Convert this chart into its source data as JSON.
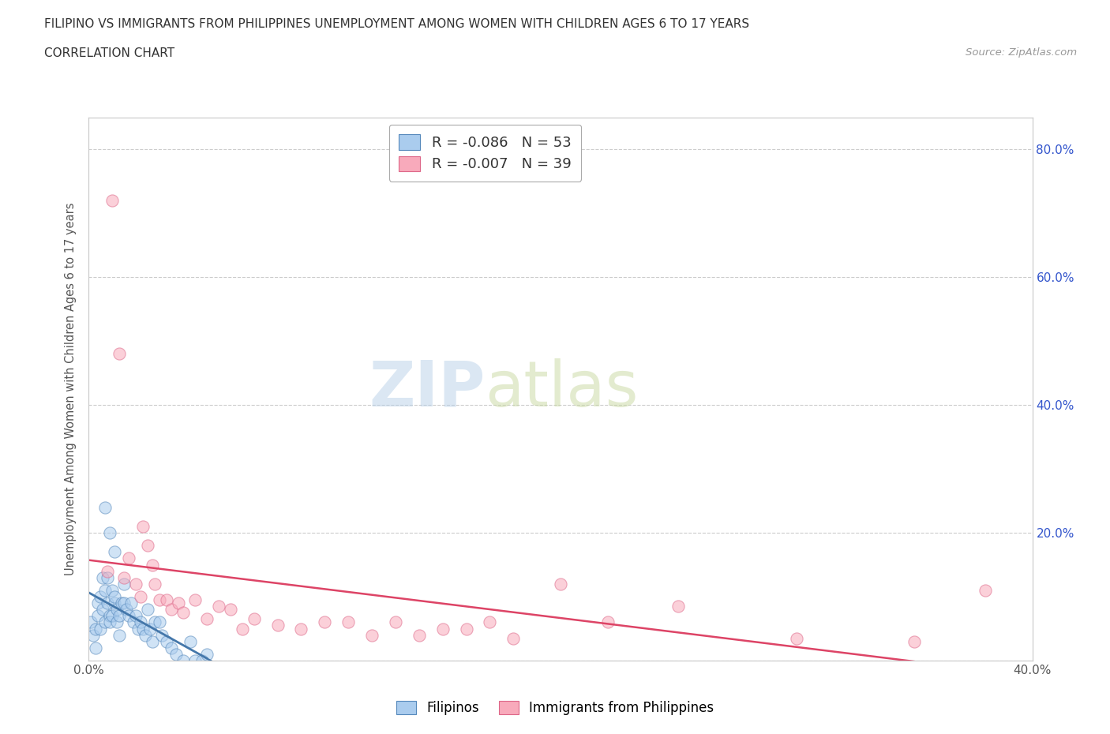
{
  "title_line1": "FILIPINO VS IMMIGRANTS FROM PHILIPPINES UNEMPLOYMENT AMONG WOMEN WITH CHILDREN AGES 6 TO 17 YEARS",
  "title_line2": "CORRELATION CHART",
  "source_text": "Source: ZipAtlas.com",
  "watermark_zip": "ZIP",
  "watermark_atlas": "atlas",
  "ylabel": "Unemployment Among Women with Children Ages 6 to 17 years",
  "xlim": [
    0.0,
    0.4
  ],
  "ylim": [
    0.0,
    0.85
  ],
  "xticks": [
    0.0,
    0.05,
    0.1,
    0.15,
    0.2,
    0.25,
    0.3,
    0.35,
    0.4
  ],
  "yticks": [
    0.0,
    0.2,
    0.4,
    0.6,
    0.8
  ],
  "ytick_labels_right": [
    "",
    "20.0%",
    "40.0%",
    "60.0%",
    "80.0%"
  ],
  "grid_color": "#cccccc",
  "background_color": "#ffffff",
  "filipinos_color": "#aaccee",
  "filipinos_edge_color": "#5588bb",
  "immigrants_color": "#f8aabb",
  "immigrants_edge_color": "#dd6688",
  "filipinos_R": -0.086,
  "filipinos_N": 53,
  "immigrants_R": -0.007,
  "immigrants_N": 39,
  "filipinos_trend_color": "#4477aa",
  "immigrants_trend_color": "#dd4466",
  "legend_R_color": "#3355cc",
  "filipinos_x": [
    0.001,
    0.002,
    0.003,
    0.003,
    0.004,
    0.004,
    0.005,
    0.005,
    0.006,
    0.006,
    0.007,
    0.007,
    0.008,
    0.008,
    0.009,
    0.009,
    0.01,
    0.01,
    0.011,
    0.011,
    0.012,
    0.012,
    0.013,
    0.013,
    0.014,
    0.015,
    0.015,
    0.016,
    0.017,
    0.018,
    0.019,
    0.02,
    0.021,
    0.022,
    0.023,
    0.024,
    0.025,
    0.026,
    0.027,
    0.028,
    0.03,
    0.031,
    0.033,
    0.035,
    0.037,
    0.04,
    0.043,
    0.045,
    0.048,
    0.05,
    0.007,
    0.009,
    0.011
  ],
  "filipinos_y": [
    0.06,
    0.04,
    0.05,
    0.02,
    0.07,
    0.09,
    0.1,
    0.05,
    0.08,
    0.13,
    0.06,
    0.11,
    0.09,
    0.13,
    0.07,
    0.06,
    0.11,
    0.07,
    0.09,
    0.1,
    0.08,
    0.06,
    0.07,
    0.04,
    0.09,
    0.12,
    0.09,
    0.08,
    0.07,
    0.09,
    0.06,
    0.07,
    0.05,
    0.06,
    0.05,
    0.04,
    0.08,
    0.05,
    0.03,
    0.06,
    0.06,
    0.04,
    0.03,
    0.02,
    0.01,
    0.0,
    0.03,
    0.0,
    0.0,
    0.01,
    0.24,
    0.2,
    0.17
  ],
  "immigrants_x": [
    0.008,
    0.01,
    0.013,
    0.015,
    0.017,
    0.02,
    0.022,
    0.025,
    0.028,
    0.03,
    0.033,
    0.035,
    0.038,
    0.04,
    0.045,
    0.05,
    0.055,
    0.06,
    0.065,
    0.07,
    0.08,
    0.09,
    0.1,
    0.11,
    0.12,
    0.13,
    0.14,
    0.15,
    0.16,
    0.17,
    0.18,
    0.2,
    0.22,
    0.25,
    0.3,
    0.35,
    0.38,
    0.023,
    0.027
  ],
  "immigrants_y": [
    0.14,
    0.72,
    0.48,
    0.13,
    0.16,
    0.12,
    0.1,
    0.18,
    0.12,
    0.095,
    0.095,
    0.08,
    0.09,
    0.075,
    0.095,
    0.065,
    0.085,
    0.08,
    0.05,
    0.065,
    0.055,
    0.05,
    0.06,
    0.06,
    0.04,
    0.06,
    0.04,
    0.05,
    0.05,
    0.06,
    0.035,
    0.12,
    0.06,
    0.085,
    0.035,
    0.03,
    0.11,
    0.21,
    0.15
  ],
  "marker_size": 120,
  "marker_alpha": 0.55
}
